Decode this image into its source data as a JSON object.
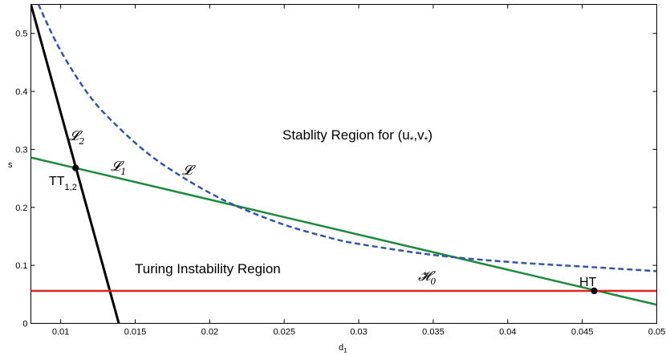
{
  "chart_data": {
    "type": "line",
    "title": "",
    "xlabel": "d",
    "xlabel_sub": "1",
    "ylabel": "s",
    "xlim": [
      0.008,
      0.05
    ],
    "ylim": [
      0,
      0.55
    ],
    "xticks": [
      0.01,
      0.015,
      0.02,
      0.025,
      0.03,
      0.035,
      0.04,
      0.045,
      0.05
    ],
    "xtick_labels": [
      "0.01",
      "0.015",
      "0.02",
      "0.025",
      "0.03",
      "0.035",
      "0.04",
      "0.045",
      "0.05"
    ],
    "yticks": [
      0,
      0.1,
      0.2,
      0.3,
      0.4,
      0.5
    ],
    "ytick_labels": [
      "0",
      "0.1",
      "0.2",
      "0.3",
      "0.4",
      "0.5"
    ],
    "series": [
      {
        "name": "L2",
        "label_main": "𝓛",
        "label_sub": "2",
        "color": "#000000",
        "style": "solid",
        "x": [
          0.008,
          0.0139
        ],
        "y": [
          0.55,
          0.0
        ]
      },
      {
        "name": "L1",
        "label_main": "𝓛",
        "label_sub": "1",
        "color": "#1a8a3a",
        "style": "solid",
        "x": [
          0.008,
          0.05
        ],
        "y": [
          0.286,
          0.032
        ]
      },
      {
        "name": "L",
        "label_main": "𝓛",
        "label_sub": "",
        "color": "#3355aa",
        "style": "dashed",
        "x": [
          0.0085,
          0.01,
          0.012,
          0.014,
          0.016,
          0.018,
          0.02,
          0.022,
          0.025,
          0.028,
          0.03,
          0.035,
          0.04,
          0.045,
          0.05
        ],
        "y": [
          0.55,
          0.47,
          0.39,
          0.335,
          0.29,
          0.255,
          0.225,
          0.2,
          0.17,
          0.148,
          0.137,
          0.118,
          0.106,
          0.098,
          0.09
        ]
      },
      {
        "name": "H0",
        "label_main": "𝓗",
        "label_sub": "0",
        "color": "#dd2222",
        "style": "solid",
        "x": [
          0.008,
          0.05
        ],
        "y": [
          0.056,
          0.056
        ]
      }
    ],
    "points": [
      {
        "name": "TT",
        "label_main": "TT",
        "label_sub": "1,2",
        "x": 0.011,
        "y": 0.268
      },
      {
        "name": "HT",
        "label_main": "HT",
        "label_sub": "",
        "x": 0.0458,
        "y": 0.056
      }
    ],
    "annotations": [
      {
        "name": "stability-region",
        "text": "Stablity Region for (u",
        "sub1": "*",
        "mid": ",v",
        "sub2": "*",
        "end": ")"
      },
      {
        "name": "turing-region",
        "text": "Turing Instability Region"
      }
    ]
  }
}
